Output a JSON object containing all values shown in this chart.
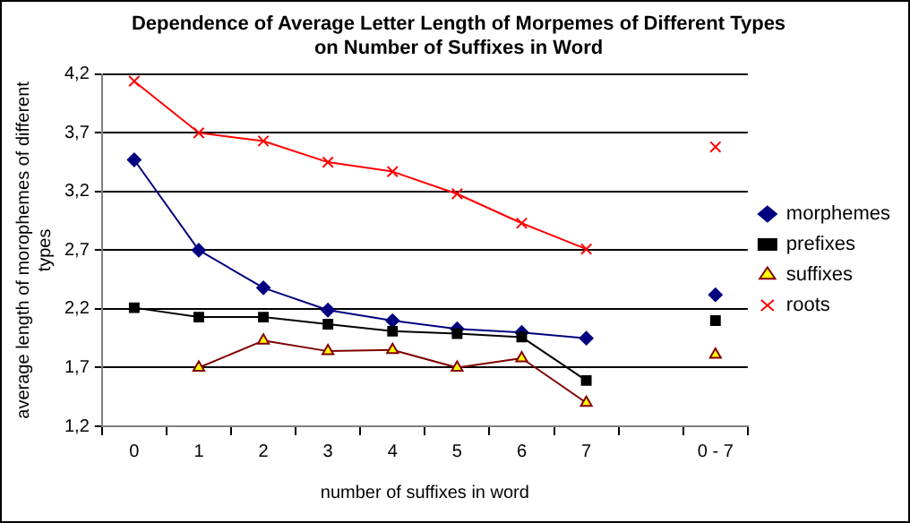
{
  "chart_data": {
    "type": "line",
    "title": "Dependence of Average Letter Length of Morpemes of Different Types\non Number of Suffixes in Word",
    "xlabel": "number of suffixes in word",
    "ylabel": "average length of morophemes of different\ntypes",
    "categories": [
      "0",
      "1",
      "2",
      "3",
      "4",
      "5",
      "6",
      "7",
      null,
      "0 - 7"
    ],
    "series": [
      {
        "name": "morphemes",
        "color": "#000080",
        "marker": "diamond",
        "values": [
          3.47,
          2.7,
          2.38,
          2.19,
          2.1,
          2.03,
          2.0,
          1.95,
          null,
          2.32
        ]
      },
      {
        "name": "prefixes",
        "color": "#000000",
        "marker": "square",
        "values": [
          2.21,
          2.13,
          2.13,
          2.07,
          2.01,
          1.99,
          1.96,
          1.59,
          null,
          2.1
        ]
      },
      {
        "name": "suffixes",
        "color": "#800000",
        "marker": "triangle",
        "values": [
          null,
          1.7,
          1.93,
          1.84,
          1.85,
          1.7,
          1.78,
          1.4,
          null,
          1.81
        ]
      },
      {
        "name": "roots",
        "color": "#ff0000",
        "marker": "cross",
        "values": [
          4.14,
          3.7,
          3.63,
          3.45,
          3.37,
          3.18,
          2.93,
          2.71,
          null,
          3.58
        ]
      }
    ],
    "ylim": [
      1.2,
      4.2
    ],
    "yticks": [
      {
        "value": 1.2,
        "label": "1,2"
      },
      {
        "value": 1.7,
        "label": "1,7"
      },
      {
        "value": 2.2,
        "label": "2,2"
      },
      {
        "value": 2.7,
        "label": "2,7"
      },
      {
        "value": 3.2,
        "label": "3,2"
      },
      {
        "value": 3.7,
        "label": "3,7"
      },
      {
        "value": 4.2,
        "label": "4,2"
      }
    ],
    "grid": "y",
    "legend": "right"
  }
}
